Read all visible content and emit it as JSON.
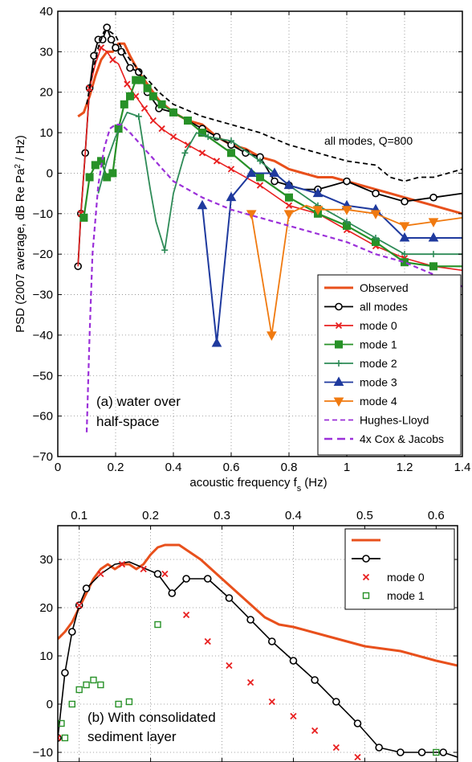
{
  "chart_data": [
    {
      "type": "line",
      "xlabel": "acoustic frequency f",
      "xlabel_sub": "s",
      "xlabel_unit": "(Hz)",
      "ylabel_pre": "PSD (2007 average, dB Re Pa",
      "ylabel_sup": "2",
      "ylabel_post": " / Hz)",
      "xlim": [
        0,
        1.4
      ],
      "ylim": [
        -70,
        40
      ],
      "xticks": [
        "0",
        "0.2",
        "0.4",
        "0.6",
        "0.8",
        "1",
        "1.2",
        "1.4"
      ],
      "yticks": [
        "−70",
        "−60",
        "−50",
        "−40",
        "−30",
        "−20",
        "−10",
        "0",
        "10",
        "20",
        "30",
        "40"
      ],
      "grid": true,
      "legend_position": "bottom-right",
      "annotations": {
        "panel_line1": "(a) water over",
        "panel_line2": "half-space",
        "q_label": "all modes, Q=800"
      },
      "series": [
        {
          "name": "Observed",
          "color": "#e8501c",
          "style": "solid",
          "x": [
            0.07,
            0.09,
            0.11,
            0.13,
            0.15,
            0.17,
            0.19,
            0.21,
            0.23,
            0.25,
            0.28,
            0.31,
            0.35,
            0.4,
            0.45,
            0.5,
            0.55,
            0.6,
            0.65,
            0.7,
            0.75,
            0.8,
            0.85,
            0.9,
            0.95,
            1.0,
            1.05,
            1.1,
            1.15,
            1.2,
            1.25,
            1.3,
            1.35,
            1.4
          ],
          "y": [
            14,
            15,
            19,
            24,
            28,
            30,
            30,
            32,
            32,
            29,
            25,
            22,
            18,
            15,
            13,
            12,
            9,
            7,
            6,
            4,
            3,
            1,
            0,
            -1,
            -1,
            -2,
            -3,
            -4,
            -5,
            -6,
            -7,
            -8,
            -9,
            -10
          ]
        },
        {
          "name": "all modes",
          "color": "#000000",
          "style": "solid",
          "marker": "circle",
          "x": [
            0.07,
            0.08,
            0.095,
            0.11,
            0.125,
            0.14,
            0.155,
            0.17,
            0.185,
            0.2,
            0.22,
            0.25,
            0.28,
            0.31,
            0.35,
            0.4,
            0.45,
            0.5,
            0.55,
            0.6,
            0.65,
            0.7,
            0.75,
            0.8,
            0.85,
            0.9,
            0.95,
            1.0,
            1.1,
            1.2,
            1.3,
            1.4
          ],
          "y": [
            -23,
            -10,
            5,
            21,
            29,
            33,
            33,
            36,
            33,
            31,
            30,
            26,
            25,
            20,
            16,
            15,
            13,
            11,
            9,
            7,
            5,
            4,
            -2,
            -3,
            -4,
            -4,
            -3,
            -2,
            -5,
            -7,
            -6,
            -5
          ],
          "markers_x": [
            0.07,
            0.08,
            0.095,
            0.11,
            0.125,
            0.14,
            0.155,
            0.17,
            0.185,
            0.2,
            0.22,
            0.25,
            0.28,
            0.31,
            0.35,
            0.4,
            0.45,
            0.5,
            0.55,
            0.6,
            0.65,
            0.7,
            0.75,
            0.8,
            0.9,
            1.0,
            1.1,
            1.2,
            1.3
          ],
          "markers_y": [
            -23,
            -10,
            5,
            21,
            29,
            33,
            33,
            36,
            33,
            31,
            30,
            26,
            25,
            20,
            16,
            15,
            13,
            11,
            9,
            7,
            5,
            4,
            -2,
            -3,
            -4,
            -2,
            -5,
            -7,
            -6
          ]
        },
        {
          "name": "mode 0",
          "color": "#e82020",
          "style": "solid",
          "marker": "x",
          "x": [
            0.07,
            0.08,
            0.095,
            0.11,
            0.13,
            0.15,
            0.17,
            0.19,
            0.21,
            0.24,
            0.27,
            0.3,
            0.33,
            0.36,
            0.4,
            0.45,
            0.5,
            0.55,
            0.6,
            0.7,
            0.8,
            0.9,
            1.0,
            1.1,
            1.2,
            1.3,
            1.4
          ],
          "y": [
            -23,
            -10,
            5,
            21,
            27,
            31,
            30,
            28,
            27,
            22,
            19,
            16,
            13,
            11,
            9,
            7,
            5,
            3,
            1,
            -3,
            -8,
            -10,
            -14,
            -18,
            -21,
            -23,
            -24
          ],
          "markers_x": [
            0.08,
            0.11,
            0.15,
            0.19,
            0.24,
            0.27,
            0.3,
            0.33,
            0.36,
            0.4,
            0.45,
            0.5,
            0.55,
            0.6,
            0.7,
            0.8,
            0.9,
            1.0,
            1.1,
            1.2,
            1.3
          ],
          "markers_y": [
            -10,
            21,
            31,
            28,
            22,
            19,
            16,
            13,
            11,
            9,
            7,
            5,
            3,
            1,
            -3,
            -8,
            -10,
            -14,
            -18,
            -21,
            -23
          ]
        },
        {
          "name": "mode 1",
          "color": "#279127",
          "style": "solid",
          "marker": "square",
          "x": [
            0.09,
            0.11,
            0.13,
            0.15,
            0.17,
            0.19,
            0.21,
            0.23,
            0.25,
            0.27,
            0.29,
            0.31,
            0.33,
            0.36,
            0.4,
            0.45,
            0.5,
            0.6,
            0.7,
            0.8,
            0.9,
            1.0,
            1.1,
            1.2,
            1.3,
            1.4
          ],
          "y": [
            -11,
            -1,
            2,
            3,
            -1,
            0,
            11,
            17,
            19,
            23,
            23,
            21,
            19,
            17,
            15,
            13,
            10,
            5,
            -1,
            -6,
            -10,
            -13,
            -17,
            -22,
            -23,
            -23
          ],
          "markers_x": [
            0.09,
            0.11,
            0.13,
            0.15,
            0.17,
            0.19,
            0.21,
            0.23,
            0.25,
            0.27,
            0.29,
            0.31,
            0.33,
            0.36,
            0.4,
            0.45,
            0.5,
            0.6,
            0.7,
            0.8,
            0.9,
            1.0,
            1.1,
            1.2,
            1.3
          ],
          "markers_y": [
            -11,
            -1,
            2,
            3,
            -1,
            0,
            11,
            17,
            19,
            23,
            23,
            21,
            19,
            17,
            15,
            13,
            10,
            5,
            -1,
            -6,
            -10,
            -13,
            -17,
            -22,
            -23
          ]
        },
        {
          "name": "mode 2",
          "color": "#2e8b57",
          "style": "solid",
          "marker": "plus",
          "x": [
            0.14,
            0.17,
            0.2,
            0.24,
            0.28,
            0.3,
            0.32,
            0.34,
            0.37,
            0.4,
            0.44,
            0.48,
            0.52,
            0.6,
            0.7,
            0.8,
            0.9,
            1.0,
            1.1,
            1.2,
            1.3,
            1.4
          ],
          "y": [
            -5,
            3,
            9,
            15,
            14,
            5,
            -4,
            -12,
            -19,
            -5,
            5,
            10,
            9,
            8,
            3,
            -3,
            -8,
            -12,
            -16,
            -20,
            -20,
            -20
          ],
          "markers_x": [
            0.28,
            0.37,
            0.44,
            0.52,
            0.6,
            0.7,
            0.8,
            0.9,
            1.0,
            1.1,
            1.2,
            1.3
          ],
          "markers_y": [
            14,
            -19,
            5,
            9,
            8,
            3,
            -3,
            -8,
            -12,
            -16,
            -20,
            -20
          ]
        },
        {
          "name": "mode 3",
          "color": "#1f3a9e",
          "style": "solid",
          "marker": "triangle-up",
          "x": [
            0.5,
            0.55,
            0.6,
            0.67,
            0.75,
            0.8,
            0.9,
            1.0,
            1.1,
            1.2,
            1.3,
            1.4
          ],
          "y": [
            -8,
            -42,
            -6,
            0,
            0,
            -3,
            -5,
            -8,
            -9,
            -16,
            -16,
            -16
          ],
          "markers_x": [
            0.5,
            0.55,
            0.6,
            0.67,
            0.75,
            0.8,
            0.9,
            1.0,
            1.1,
            1.2,
            1.3
          ],
          "markers_y": [
            -8,
            -42,
            -6,
            0,
            0,
            -3,
            -5,
            -8,
            -9,
            -16,
            -16
          ]
        },
        {
          "name": "mode 4",
          "color": "#f07a10",
          "style": "solid",
          "marker": "triangle-down",
          "x": [
            0.67,
            0.74,
            0.8,
            0.86,
            0.9,
            1.0,
            1.1,
            1.2,
            1.3,
            1.4
          ],
          "y": [
            -10,
            -40,
            -10,
            -8,
            -9,
            -9,
            -10,
            -13,
            -12,
            -11
          ],
          "markers_x": [
            0.67,
            0.74,
            0.8,
            0.9,
            1.0,
            1.1,
            1.2,
            1.3
          ],
          "markers_y": [
            -10,
            -40,
            -10,
            -9,
            -9,
            -10,
            -13,
            -12
          ]
        },
        {
          "name": "Hughes-Lloyd",
          "color": "#9b30d9",
          "style": "dashed",
          "x": [
            0.1,
            0.11,
            0.12,
            0.14,
            0.16,
            0.18,
            0.2,
            0.22,
            0.25,
            0.3,
            0.35,
            0.4,
            0.5,
            0.6,
            0.7,
            0.8,
            0.9,
            1.0,
            1.1,
            1.2,
            1.3,
            1.4
          ],
          "y": [
            -64,
            -40,
            -20,
            -3,
            6,
            11,
            12,
            12,
            10,
            6,
            2,
            -2,
            -6,
            -9,
            -11,
            -13,
            -15,
            -17,
            -20,
            -22,
            -25,
            -28
          ]
        },
        {
          "name": "4x Cox & Jacobs",
          "color": "#000000",
          "style": "dashed",
          "x": [
            0.1,
            0.12,
            0.14,
            0.16,
            0.18,
            0.2,
            0.22,
            0.25,
            0.3,
            0.35,
            0.4,
            0.5,
            0.6,
            0.7,
            0.8,
            0.9,
            1.0,
            1.1,
            1.15,
            1.2,
            1.25,
            1.3,
            1.35,
            1.4
          ],
          "y": [
            17,
            25,
            31,
            35,
            35,
            34,
            31,
            28,
            24,
            20,
            17,
            14,
            12,
            10,
            7,
            5,
            3,
            2,
            -1,
            -2,
            -1,
            -1,
            0,
            1
          ]
        }
      ],
      "legend": [
        "Observed",
        "all modes",
        "mode 0",
        "mode 1",
        "mode 2",
        "mode 3",
        "mode 4",
        "Hughes-Lloyd",
        "4x Cox & Jacobs"
      ]
    },
    {
      "type": "line",
      "xlim": [
        0.07,
        0.63
      ],
      "ylim": [
        -12,
        37
      ],
      "xticks": [
        "0.1",
        "0.2",
        "0.3",
        "0.4",
        "0.5",
        "0.6"
      ],
      "yticks": [
        "−10",
        "0",
        "10",
        "20",
        "30"
      ],
      "grid": true,
      "legend_position": "top-right",
      "annotations": {
        "panel_line1": "(b) With consolidated",
        "panel_line2": "sediment layer"
      },
      "series": [
        {
          "name": "",
          "color": "#e8501c",
          "style": "solid",
          "x": [
            0.07,
            0.08,
            0.09,
            0.1,
            0.11,
            0.12,
            0.13,
            0.14,
            0.15,
            0.16,
            0.17,
            0.18,
            0.19,
            0.2,
            0.21,
            0.22,
            0.23,
            0.24,
            0.25,
            0.27,
            0.3,
            0.33,
            0.36,
            0.38,
            0.4,
            0.45,
            0.5,
            0.55,
            0.6,
            0.63
          ],
          "y": [
            13.5,
            15,
            17,
            20,
            23,
            26,
            28,
            29,
            28,
            29,
            29,
            28,
            29,
            31,
            32.5,
            33,
            33,
            33,
            32,
            30,
            26,
            22,
            18,
            16.5,
            16,
            14,
            12,
            11,
            9,
            8
          ]
        },
        {
          "name": "",
          "color": "#000000",
          "style": "solid",
          "marker": "circle",
          "x": [
            0.07,
            0.08,
            0.09,
            0.1,
            0.11,
            0.13,
            0.15,
            0.17,
            0.21,
            0.23,
            0.25,
            0.28,
            0.31,
            0.34,
            0.37,
            0.4,
            0.43,
            0.46,
            0.49,
            0.52,
            0.55,
            0.58,
            0.61,
            0.63
          ],
          "y": [
            -7,
            6.5,
            15,
            20.5,
            24,
            27,
            29,
            29.5,
            27,
            23,
            26,
            26,
            22,
            17.5,
            13,
            9,
            5,
            0.5,
            -4,
            -9,
            -10,
            -10,
            -10,
            -11
          ],
          "markers_x": [
            0.07,
            0.08,
            0.09,
            0.1,
            0.11,
            0.21,
            0.23,
            0.25,
            0.28,
            0.31,
            0.34,
            0.37,
            0.4,
            0.43,
            0.46,
            0.49,
            0.52,
            0.55,
            0.58,
            0.61
          ],
          "markers_y": [
            -7,
            6.5,
            15,
            20.5,
            24,
            27,
            23,
            26,
            26,
            22,
            17.5,
            13,
            9,
            5,
            0.5,
            -4,
            -9,
            -10,
            -10,
            -10
          ]
        },
        {
          "name": "mode 0",
          "color": "#e82020",
          "marker": "x",
          "x": [
            0.07,
            0.1,
            0.13,
            0.16,
            0.19,
            0.22,
            0.25,
            0.28,
            0.31,
            0.34,
            0.37,
            0.4,
            0.43,
            0.46,
            0.49,
            0.52,
            0.55,
            0.58,
            0.61
          ],
          "y": [
            -7,
            20.5,
            27,
            29,
            28,
            27,
            18.5,
            13,
            8,
            4.5,
            0.5,
            -2.5,
            -5.5,
            -9,
            -11,
            -13,
            -15,
            -17,
            -19
          ]
        },
        {
          "name": "mode 1",
          "color": "#279127",
          "marker": "square",
          "x": [
            0.075,
            0.08,
            0.09,
            0.1,
            0.11,
            0.12,
            0.13,
            0.155,
            0.17,
            0.21,
            0.6
          ],
          "y": [
            -4,
            -7,
            0,
            3,
            4,
            5,
            4,
            0,
            0.5,
            16.5,
            -10
          ]
        }
      ],
      "legend": [
        "",
        "",
        "mode 0",
        "mode 1"
      ]
    }
  ]
}
